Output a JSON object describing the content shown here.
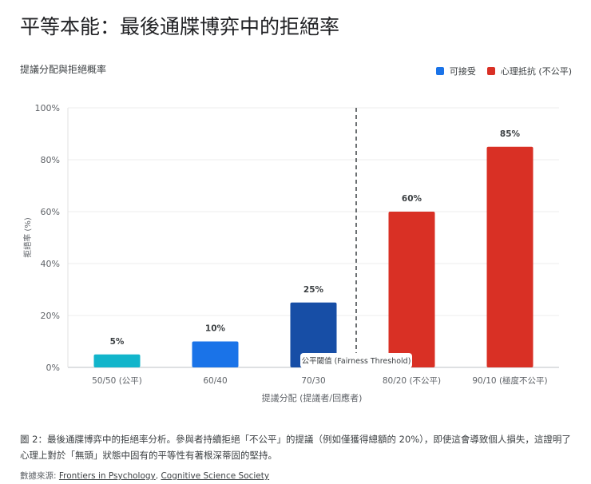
{
  "title": "平等本能：最後通牒博弈中的拒絕率",
  "chart_data": {
    "type": "bar",
    "title": "提議分配與拒絕概率",
    "xlabel": "提議分配 (提議者/回應者)",
    "ylabel": "拒絕率 (%)",
    "categories": [
      "50/50 (公平)",
      "60/40",
      "70/30",
      "80/20 (不公平)",
      "90/10 (極度不公平)"
    ],
    "values": [
      5,
      10,
      25,
      60,
      85
    ],
    "data_labels": [
      "5%",
      "10%",
      "25%",
      "60%",
      "85%"
    ],
    "bar_colors": [
      "#12b5cb",
      "#1a73e8",
      "#174ea6",
      "#d93025",
      "#d93025"
    ],
    "ylim": [
      0,
      100
    ],
    "yticks": [
      0,
      20,
      40,
      60,
      80,
      100
    ],
    "ytick_labels": [
      "0%",
      "20%",
      "40%",
      "60%",
      "80%",
      "100%"
    ],
    "grid": true,
    "legend": {
      "placement": "top-right",
      "entries": [
        {
          "label": "可接受",
          "color": "#1a73e8"
        },
        {
          "label": "心理抵抗 (不公平)",
          "color": "#d93025"
        }
      ]
    },
    "annotation": {
      "label": "公平閾值 (Fairness Threshold)",
      "position": "between 70/30 and 80/20",
      "style": "dashed vertical line"
    }
  },
  "caption": "圖 2：最後通牒博弈中的拒絕率分析。參與者持續拒絕「不公平」的提議（例如僅獲得總額的 20%），即使這會導致個人損失，這證明了心理上對於「無頭」狀態中固有的平等性有著根深蒂固的堅持。",
  "source": {
    "prefix": "數據來源: ",
    "links": [
      "Frontiers in Psychology",
      "Cognitive Science Society"
    ],
    "separator": ", "
  }
}
